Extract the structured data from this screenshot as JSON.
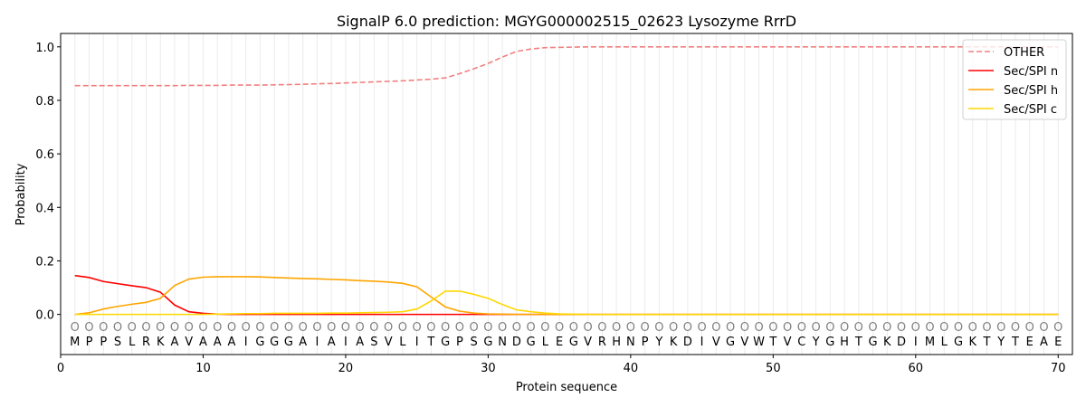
{
  "chart_data": {
    "type": "line",
    "title": "SignalP 6.0 prediction: MGYG000002515_02623 Lysozyme RrrD",
    "xlabel": "Protein sequence",
    "ylabel": "Probability",
    "xlim": [
      0,
      71
    ],
    "ylim": [
      -0.15,
      1.05
    ],
    "xticks": [
      0,
      10,
      20,
      30,
      40,
      50,
      60,
      70
    ],
    "yticks": [
      0.0,
      0.2,
      0.4,
      0.6,
      0.8,
      1.0
    ],
    "vertical_grid": "every residue",
    "legend_placement": "top-right",
    "sequence": [
      "M",
      "P",
      "P",
      "S",
      "L",
      "R",
      "K",
      "A",
      "V",
      "A",
      "A",
      "A",
      "I",
      "G",
      "G",
      "G",
      "A",
      "I",
      "A",
      "I",
      "A",
      "S",
      "V",
      "L",
      "I",
      "T",
      "G",
      "P",
      "S",
      "G",
      "N",
      "D",
      "G",
      "L",
      "E",
      "G",
      "V",
      "R",
      "H",
      "N",
      "P",
      "Y",
      "K",
      "D",
      "I",
      "V",
      "G",
      "V",
      "W",
      "T",
      "V",
      "C",
      "Y",
      "G",
      "H",
      "T",
      "G",
      "K",
      "D",
      "I",
      "M",
      "L",
      "G",
      "K",
      "T",
      "Y",
      "T",
      "E",
      "A",
      "E"
    ],
    "region_marker": "O",
    "x": [
      1,
      2,
      3,
      4,
      5,
      6,
      7,
      8,
      9,
      10,
      11,
      12,
      13,
      14,
      15,
      16,
      17,
      18,
      19,
      20,
      21,
      22,
      23,
      24,
      25,
      26,
      27,
      28,
      29,
      30,
      31,
      32,
      33,
      34,
      35,
      36,
      37,
      38,
      39,
      40,
      41,
      42,
      43,
      44,
      45,
      46,
      47,
      48,
      49,
      50,
      51,
      52,
      53,
      54,
      55,
      56,
      57,
      58,
      59,
      60,
      61,
      62,
      63,
      64,
      65,
      66,
      67,
      68,
      69,
      70
    ],
    "series": [
      {
        "name": "OTHER",
        "color": "#f08080",
        "dash": true,
        "values": [
          0.855,
          0.855,
          0.855,
          0.855,
          0.855,
          0.855,
          0.855,
          0.855,
          0.856,
          0.856,
          0.856,
          0.857,
          0.857,
          0.857,
          0.858,
          0.859,
          0.86,
          0.862,
          0.863,
          0.865,
          0.867,
          0.869,
          0.871,
          0.873,
          0.876,
          0.879,
          0.884,
          0.9,
          0.918,
          0.938,
          0.962,
          0.983,
          0.992,
          0.997,
          0.998,
          0.999,
          1.0,
          1.0,
          1.0,
          1.0,
          1.0,
          1.0,
          1.0,
          1.0,
          1.0,
          1.0,
          1.0,
          1.0,
          1.0,
          1.0,
          1.0,
          1.0,
          1.0,
          1.0,
          1.0,
          1.0,
          1.0,
          1.0,
          1.0,
          1.0,
          1.0,
          1.0,
          1.0,
          1.0,
          1.0,
          1.0,
          1.0,
          1.0,
          1.0,
          1.0
        ]
      },
      {
        "name": "Sec/SPI n",
        "color": "#ff0000",
        "values": [
          0.145,
          0.138,
          0.123,
          0.115,
          0.107,
          0.1,
          0.083,
          0.035,
          0.01,
          0.004,
          0.001,
          0,
          0,
          0,
          0,
          0,
          0,
          0,
          0,
          0,
          0,
          0,
          0,
          0,
          0,
          0,
          0,
          0,
          0,
          0,
          0,
          0,
          0,
          0,
          0,
          0,
          0,
          0,
          0,
          0,
          0,
          0,
          0,
          0,
          0,
          0,
          0,
          0,
          0,
          0,
          0,
          0,
          0,
          0,
          0,
          0,
          0,
          0,
          0,
          0,
          0,
          0,
          0,
          0,
          0,
          0,
          0,
          0,
          0,
          0
        ]
      },
      {
        "name": "Sec/SPI h",
        "color": "#ffa500",
        "values": [
          0.0,
          0.006,
          0.02,
          0.03,
          0.038,
          0.045,
          0.06,
          0.108,
          0.132,
          0.139,
          0.141,
          0.141,
          0.141,
          0.14,
          0.138,
          0.136,
          0.134,
          0.133,
          0.131,
          0.129,
          0.126,
          0.124,
          0.121,
          0.116,
          0.103,
          0.065,
          0.028,
          0.012,
          0.005,
          0.002,
          0.001,
          0,
          0,
          0,
          0,
          0,
          0,
          0,
          0,
          0,
          0,
          0,
          0,
          0,
          0,
          0,
          0,
          0,
          0,
          0,
          0,
          0,
          0,
          0,
          0,
          0,
          0,
          0,
          0,
          0,
          0,
          0,
          0,
          0,
          0,
          0,
          0,
          0,
          0,
          0
        ]
      },
      {
        "name": "Sec/SPI c",
        "color": "#ffd700",
        "values": [
          0,
          0,
          0,
          0,
          0,
          0,
          0,
          0,
          0,
          0,
          0.001,
          0.002,
          0.003,
          0.003,
          0.004,
          0.004,
          0.004,
          0.004,
          0.005,
          0.005,
          0.006,
          0.007,
          0.008,
          0.01,
          0.02,
          0.05,
          0.087,
          0.087,
          0.075,
          0.06,
          0.037,
          0.017,
          0.01,
          0.005,
          0.002,
          0.001,
          0,
          0,
          0,
          0,
          0,
          0,
          0,
          0,
          0,
          0,
          0,
          0,
          0,
          0,
          0,
          0,
          0,
          0,
          0,
          0,
          0,
          0,
          0,
          0,
          0,
          0,
          0,
          0,
          0,
          0,
          0,
          0,
          0,
          0
        ]
      }
    ]
  }
}
